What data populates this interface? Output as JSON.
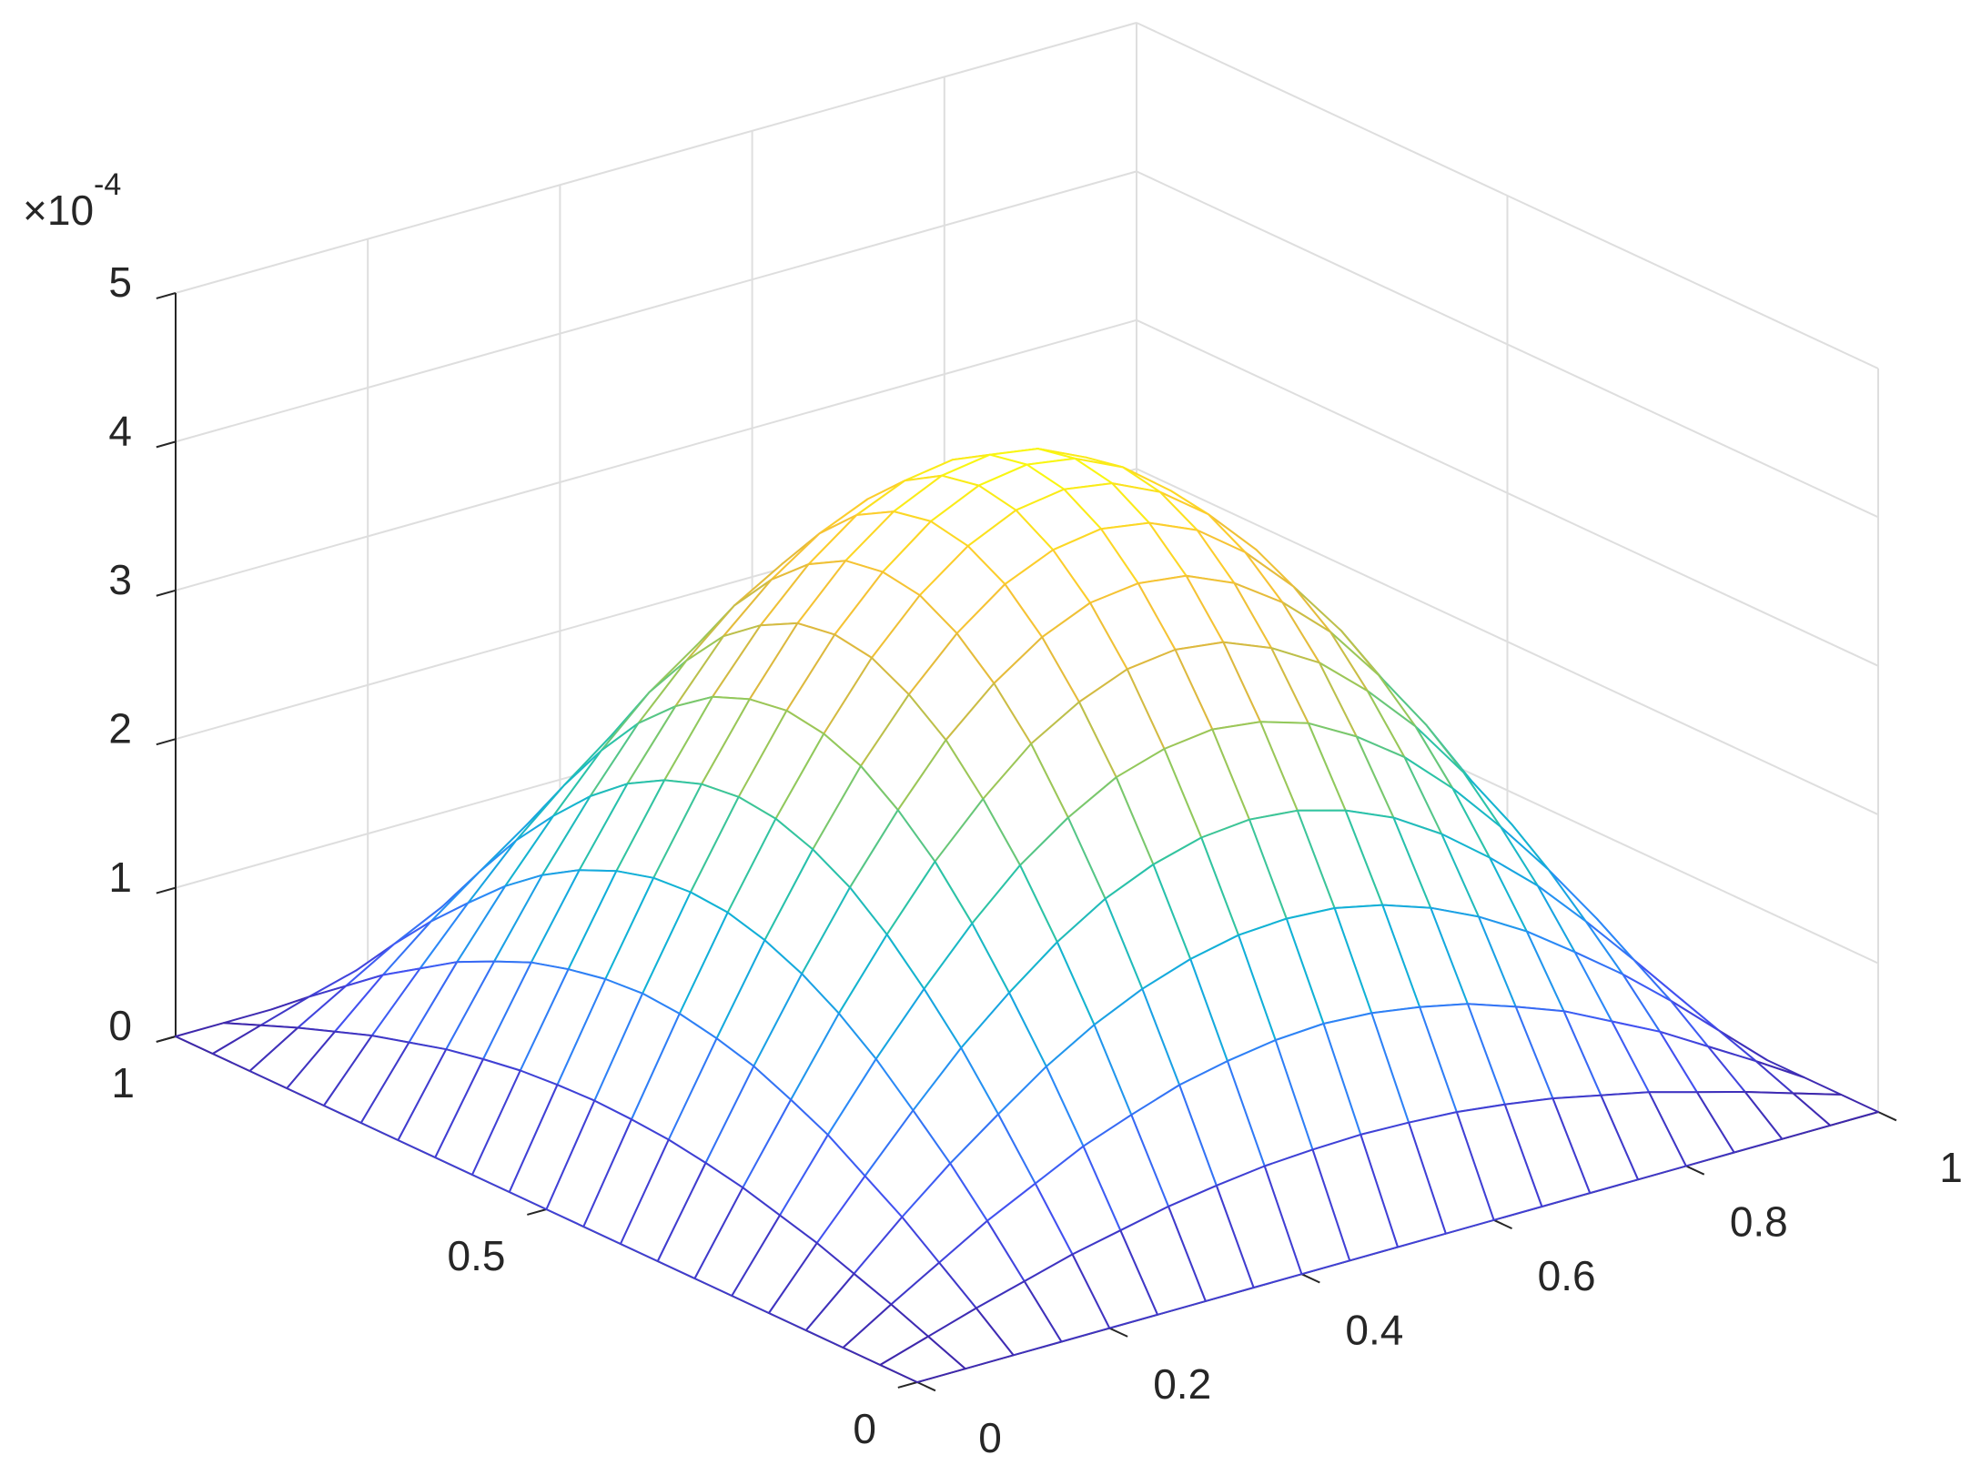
{
  "chart_data": {
    "type": "mesh",
    "x": [
      0,
      0.05,
      0.1,
      0.15,
      0.2,
      0.25,
      0.3,
      0.35,
      0.4,
      0.45,
      0.5,
      0.55,
      0.6,
      0.65,
      0.7,
      0.75,
      0.8,
      0.85,
      0.9,
      0.95,
      1
    ],
    "y": [
      0,
      0.05,
      0.1,
      0.15,
      0.2,
      0.25,
      0.3,
      0.35,
      0.4,
      0.45,
      0.5,
      0.55,
      0.6,
      0.65,
      0.7,
      0.75,
      0.8,
      0.85,
      0.9,
      0.95,
      1
    ],
    "z": [
      [
        0,
        0,
        0,
        0,
        0,
        0,
        0,
        0,
        0,
        0,
        0,
        0,
        0,
        0,
        0,
        0,
        0,
        0,
        0,
        0,
        0
      ],
      [
        0,
        0.1,
        0.2,
        0.29,
        0.38,
        0.45,
        0.52,
        0.57,
        0.61,
        0.63,
        0.64,
        0.63,
        0.61,
        0.57,
        0.52,
        0.45,
        0.38,
        0.29,
        0.2,
        0.1,
        0
      ],
      [
        0,
        0.2,
        0.39,
        0.58,
        0.74,
        0.9,
        1.02,
        1.13,
        1.2,
        1.25,
        1.27,
        1.25,
        1.2,
        1.13,
        1.02,
        0.9,
        0.74,
        0.58,
        0.39,
        0.2,
        0
      ],
      [
        0,
        0.29,
        0.58,
        0.85,
        1.09,
        1.32,
        1.51,
        1.66,
        1.77,
        1.84,
        1.86,
        1.84,
        1.77,
        1.66,
        1.51,
        1.32,
        1.09,
        0.85,
        0.58,
        0.29,
        0
      ],
      [
        0,
        0.38,
        0.74,
        1.09,
        1.42,
        1.7,
        1.95,
        2.15,
        2.29,
        2.38,
        2.41,
        2.38,
        2.29,
        2.15,
        1.95,
        1.7,
        1.42,
        1.09,
        0.74,
        0.38,
        0
      ],
      [
        0,
        0.45,
        0.9,
        1.32,
        1.7,
        2.05,
        2.35,
        2.58,
        2.76,
        2.86,
        2.9,
        2.86,
        2.76,
        2.58,
        2.35,
        2.05,
        1.7,
        1.32,
        0.9,
        0.45,
        0
      ],
      [
        0,
        0.52,
        1.02,
        1.51,
        1.95,
        2.35,
        2.68,
        2.96,
        3.15,
        3.28,
        3.32,
        3.28,
        3.15,
        2.96,
        2.68,
        2.35,
        1.95,
        1.51,
        1.02,
        0.52,
        0
      ],
      [
        0,
        0.57,
        1.13,
        1.66,
        2.15,
        2.58,
        2.96,
        3.25,
        3.47,
        3.61,
        3.65,
        3.61,
        3.47,
        3.25,
        2.96,
        2.58,
        2.15,
        1.66,
        1.13,
        0.57,
        0
      ],
      [
        0,
        0.61,
        1.2,
        1.77,
        2.29,
        2.76,
        3.15,
        3.47,
        3.71,
        3.85,
        3.9,
        3.85,
        3.71,
        3.47,
        3.15,
        2.76,
        2.29,
        1.77,
        1.2,
        0.61,
        0
      ],
      [
        0,
        0.63,
        1.25,
        1.84,
        2.38,
        2.86,
        3.28,
        3.61,
        3.85,
        4.0,
        4.05,
        4.0,
        3.85,
        3.61,
        3.28,
        2.86,
        2.38,
        1.84,
        1.25,
        0.63,
        0
      ],
      [
        0,
        0.64,
        1.27,
        1.86,
        2.41,
        2.9,
        3.32,
        3.65,
        3.9,
        4.05,
        4.1,
        4.05,
        3.9,
        3.65,
        3.32,
        2.9,
        2.41,
        1.86,
        1.27,
        0.64,
        0
      ],
      [
        0,
        0.63,
        1.25,
        1.84,
        2.38,
        2.86,
        3.28,
        3.61,
        3.85,
        4.0,
        4.05,
        4.0,
        3.85,
        3.61,
        3.28,
        2.86,
        2.38,
        1.84,
        1.25,
        0.63,
        0
      ],
      [
        0,
        0.61,
        1.2,
        1.77,
        2.29,
        2.76,
        3.15,
        3.47,
        3.71,
        3.85,
        3.9,
        3.85,
        3.71,
        3.47,
        3.15,
        2.76,
        2.29,
        1.77,
        1.2,
        0.61,
        0
      ],
      [
        0,
        0.57,
        1.13,
        1.66,
        2.15,
        2.58,
        2.96,
        3.25,
        3.47,
        3.61,
        3.65,
        3.61,
        3.47,
        3.25,
        2.96,
        2.58,
        2.15,
        1.66,
        1.13,
        0.57,
        0
      ],
      [
        0,
        0.52,
        1.02,
        1.51,
        1.95,
        2.35,
        2.68,
        2.96,
        3.15,
        3.28,
        3.32,
        3.28,
        3.15,
        2.96,
        2.68,
        2.35,
        1.95,
        1.51,
        1.02,
        0.52,
        0
      ],
      [
        0,
        0.45,
        0.9,
        1.32,
        1.7,
        2.05,
        2.35,
        2.58,
        2.76,
        2.86,
        2.9,
        2.86,
        2.76,
        2.58,
        2.35,
        2.05,
        1.7,
        1.32,
        0.9,
        0.45,
        0
      ],
      [
        0,
        0.38,
        0.74,
        1.09,
        1.42,
        1.7,
        1.95,
        2.15,
        2.29,
        2.38,
        2.41,
        2.38,
        2.29,
        2.15,
        1.95,
        1.7,
        1.42,
        1.09,
        0.74,
        0.38,
        0
      ],
      [
        0,
        0.29,
        0.58,
        0.85,
        1.09,
        1.32,
        1.51,
        1.66,
        1.77,
        1.84,
        1.86,
        1.84,
        1.77,
        1.66,
        1.51,
        1.32,
        1.09,
        0.85,
        0.58,
        0.29,
        0
      ],
      [
        0,
        0.2,
        0.39,
        0.58,
        0.74,
        0.9,
        1.02,
        1.13,
        1.2,
        1.25,
        1.27,
        1.25,
        1.2,
        1.13,
        1.02,
        0.9,
        0.74,
        0.58,
        0.39,
        0.2,
        0
      ],
      [
        0,
        0.1,
        0.2,
        0.29,
        0.38,
        0.45,
        0.52,
        0.57,
        0.61,
        0.63,
        0.64,
        0.63,
        0.61,
        0.57,
        0.52,
        0.45,
        0.38,
        0.29,
        0.2,
        0.1,
        0
      ],
      [
        0,
        0,
        0,
        0,
        0,
        0,
        0,
        0,
        0,
        0,
        0,
        0,
        0,
        0,
        0,
        0,
        0,
        0,
        0,
        0,
        0
      ]
    ],
    "xlim": [
      0,
      1
    ],
    "ylim": [
      0,
      1
    ],
    "zlim": [
      0,
      5
    ],
    "xticks": [
      0,
      0.2,
      0.4,
      0.6,
      0.8,
      1
    ],
    "yticks": [
      0,
      0.5,
      1
    ],
    "zticks": [
      0,
      1,
      2,
      3,
      4,
      5
    ],
    "z_exponent": {
      "base": "×10",
      "power": "-4"
    },
    "grid": true,
    "colormap": [
      "#3e26a8",
      "#4352f2",
      "#2b8af7",
      "#11b1d8",
      "#2ec4a4",
      "#8fc95e",
      "#dcb93f",
      "#fdc632",
      "#f9fb0e"
    ]
  }
}
